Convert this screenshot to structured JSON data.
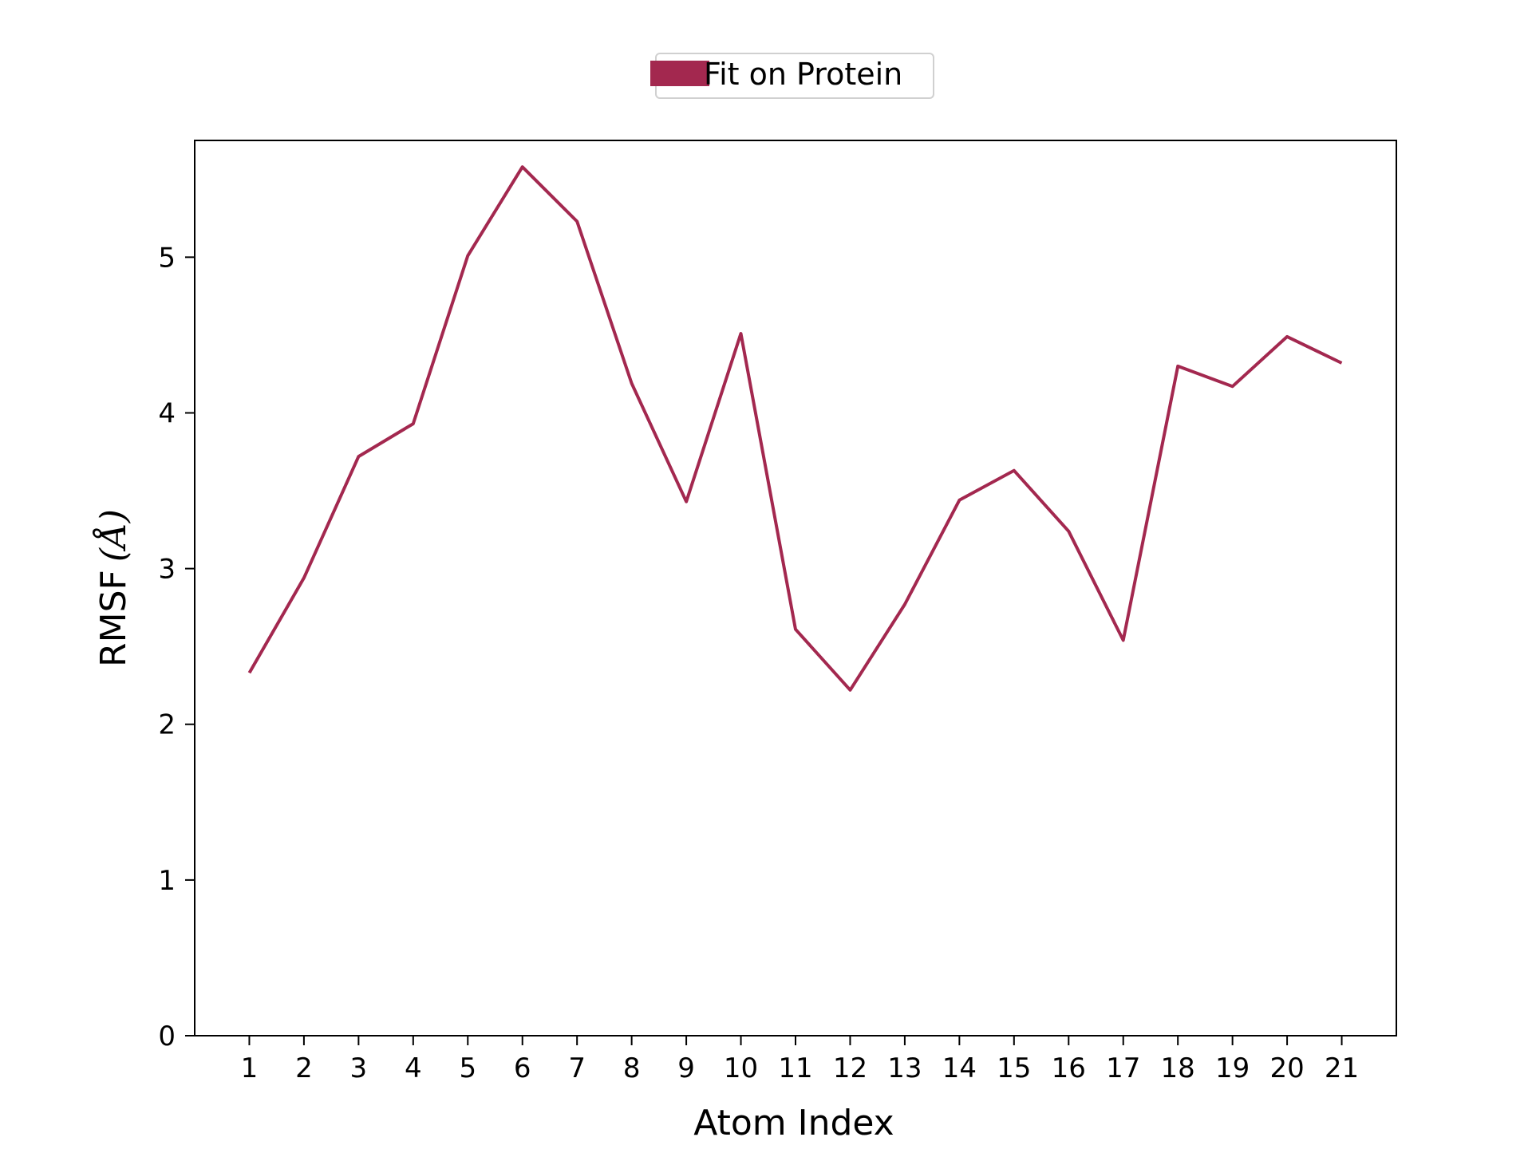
{
  "legend": {
    "entries": [
      {
        "label": "Fit on Protein",
        "color": "#A3284F"
      }
    ]
  },
  "axes": {
    "xlabel": "Atom Index",
    "ylabel_prefix": "RMSF",
    "ylabel_unit": "Å"
  },
  "chart_data": {
    "type": "line",
    "xlabel": "Atom Index",
    "ylabel": "RMSF (Å)",
    "xlim": [
      0,
      22
    ],
    "ylim": [
      0,
      5.75
    ],
    "x_ticks": [
      1,
      2,
      3,
      4,
      5,
      6,
      7,
      8,
      9,
      10,
      11,
      12,
      13,
      14,
      15,
      16,
      17,
      18,
      19,
      20,
      21
    ],
    "y_ticks": [
      0,
      1,
      2,
      3,
      4,
      5
    ],
    "grid": false,
    "legend_position": "top-center",
    "series": [
      {
        "name": "Fit on Protein",
        "color": "#A3284F",
        "x": [
          1,
          2,
          3,
          4,
          5,
          6,
          7,
          8,
          9,
          10,
          11,
          12,
          13,
          14,
          15,
          16,
          17,
          18,
          19,
          20,
          21
        ],
        "values": [
          2.33,
          2.94,
          3.72,
          3.93,
          5.01,
          5.58,
          5.23,
          4.19,
          3.43,
          4.51,
          2.61,
          2.22,
          2.77,
          3.44,
          3.63,
          3.24,
          2.54,
          4.3,
          4.17,
          4.49,
          4.32
        ]
      }
    ]
  }
}
